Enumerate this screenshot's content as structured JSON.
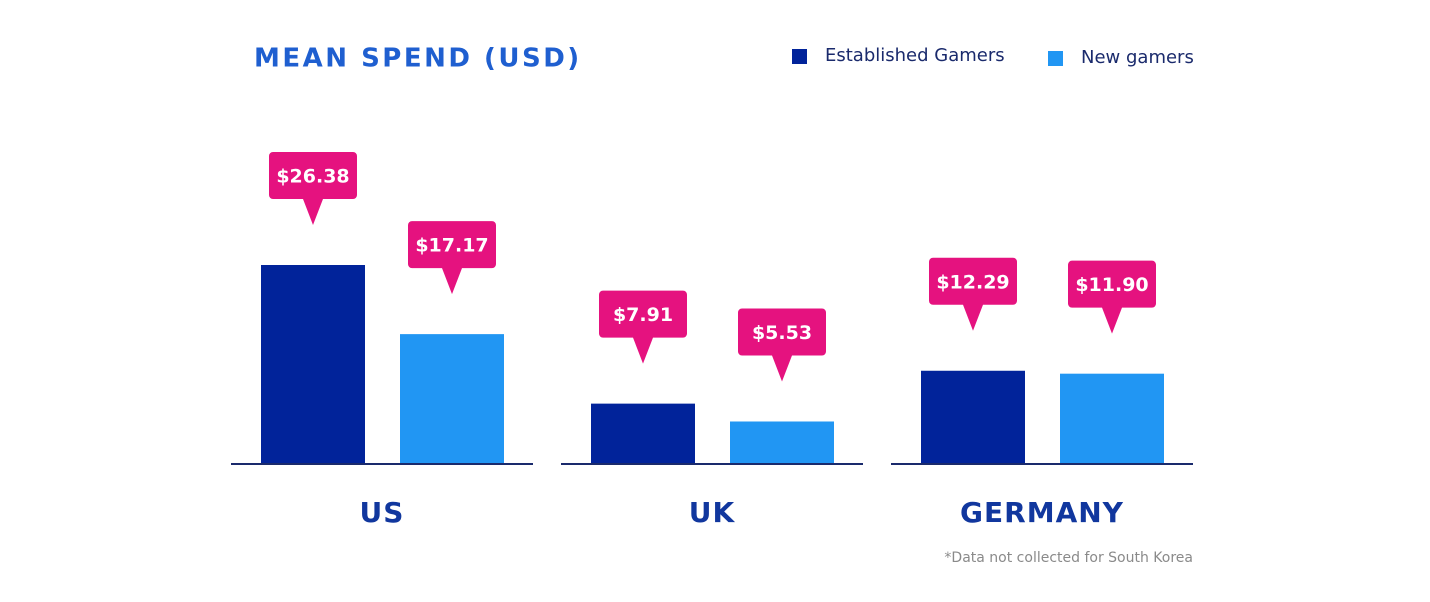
{
  "chart_data": {
    "type": "bar",
    "title": "MEAN SPEND (USD)",
    "categories": [
      "US",
      "UK",
      "GERMANY"
    ],
    "series": [
      {
        "name": "Established Gamers",
        "color": "#01239a",
        "values": [
          26.38,
          7.91,
          12.29
        ],
        "value_labels": [
          "$26.38",
          "$7.91",
          "$12.29"
        ]
      },
      {
        "name": "New gamers",
        "color": "#2196f3",
        "values": [
          17.17,
          5.53,
          11.9
        ],
        "value_labels": [
          "$17.17",
          "$5.53",
          "$11.90"
        ]
      }
    ],
    "label_color": "#e5127f",
    "note": "*Data not collected for South Korea"
  }
}
